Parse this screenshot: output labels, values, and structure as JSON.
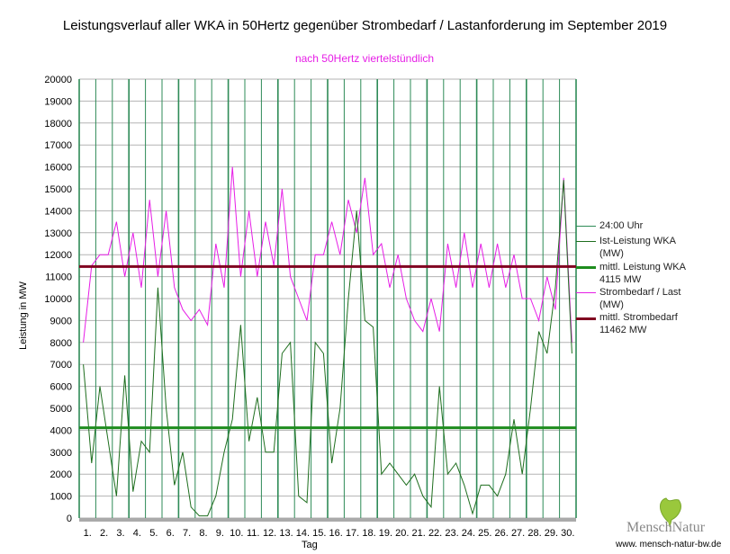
{
  "chart_data": {
    "type": "line",
    "title": "Leistungsverlauf aller WKA in 50Hertz gegenüber  Strombedarf / Lastanforderung im September 2019",
    "subtitle": "nach 50Hertz viertelstündlich",
    "xlabel": "Tag",
    "ylabel": "Leistung in MW",
    "ylim": [
      0,
      20000
    ],
    "ytick_step": 1000,
    "yticks": [
      "0",
      "1000",
      "2000",
      "3000",
      "4000",
      "5000",
      "6000",
      "7000",
      "8000",
      "9000",
      "10000",
      "11000",
      "12000",
      "13000",
      "14000",
      "15000",
      "16000",
      "17000",
      "18000",
      "19000",
      "20000"
    ],
    "xticks": [
      "1.",
      "2.",
      "3.",
      "4.",
      "5.",
      "6.",
      "7.",
      "8.",
      "9.",
      "10.",
      "11.",
      "12.",
      "13.",
      "14.",
      "15.",
      "16.",
      "17.",
      "18.",
      "19.",
      "20.",
      "21.",
      "22.",
      "23.",
      "24.",
      "25.",
      "26.",
      "27.",
      "28.",
      "29.",
      "30."
    ],
    "x_unit": "half-day samples (approximate)",
    "series": [
      {
        "name": "24:00 Uhr",
        "type": "vertical-lines",
        "color": "#2e8b57"
      },
      {
        "name": "Ist-Leistung WKA (MW)",
        "color": "#1e6e1e",
        "values": [
          7000,
          2500,
          6000,
          3500,
          1000,
          6500,
          1200,
          3500,
          3000,
          10500,
          5000,
          1500,
          3000,
          500,
          100,
          100,
          1000,
          3000,
          4500,
          8800,
          3500,
          5500,
          3000,
          3000,
          7500,
          8000,
          1000,
          700,
          8000,
          7500,
          2500,
          5000,
          10000,
          14000,
          9000,
          8700,
          2000,
          2500,
          2000,
          1500,
          2000,
          1000,
          500,
          6000,
          2000,
          2500,
          1500,
          200,
          1500,
          1500,
          1000,
          2000,
          4500,
          2000,
          5000,
          8500,
          7500,
          10500,
          15400,
          7500
        ]
      },
      {
        "name": "mittl. Leistung WKA",
        "label2": "4115 MW",
        "color": "#1e8c1e",
        "value": 4115
      },
      {
        "name": "Strombedarf / Last (MW)",
        "color": "#e61ee6",
        "values": [
          8000,
          11500,
          12000,
          12000,
          13500,
          11000,
          13000,
          10500,
          14500,
          11000,
          14000,
          10500,
          9500,
          9000,
          9500,
          8800,
          12500,
          10500,
          16000,
          11000,
          14000,
          11000,
          13500,
          11500,
          15000,
          11000,
          10000,
          9000,
          12000,
          12000,
          13500,
          12000,
          14500,
          13000,
          15500,
          12000,
          12500,
          10500,
          12000,
          10000,
          9000,
          8500,
          10000,
          8500,
          12500,
          10500,
          13000,
          10500,
          12500,
          10500,
          12500,
          10500,
          12000,
          10000,
          10000,
          9000,
          11000,
          9500,
          15500,
          8000
        ]
      },
      {
        "name": "mittl. Strombedarf",
        "label2": "11462 MW",
        "color": "#800020",
        "value": 11462
      }
    ]
  },
  "legend": [
    {
      "line1": "24:00 Uhr",
      "line2": ""
    },
    {
      "line1": "Ist-Leistung WKA",
      "line2": "(MW)"
    },
    {
      "line1": "mittl. Leistung WKA",
      "line2": "4115 MW"
    },
    {
      "line1": "Strombedarf / Last",
      "line2": "(MW)"
    },
    {
      "line1": "mittl. Strombedarf",
      "line2": "11462 MW"
    }
  ],
  "logo": {
    "text": "MenschNatur",
    "url": "www. mensch-natur-bw.de"
  }
}
